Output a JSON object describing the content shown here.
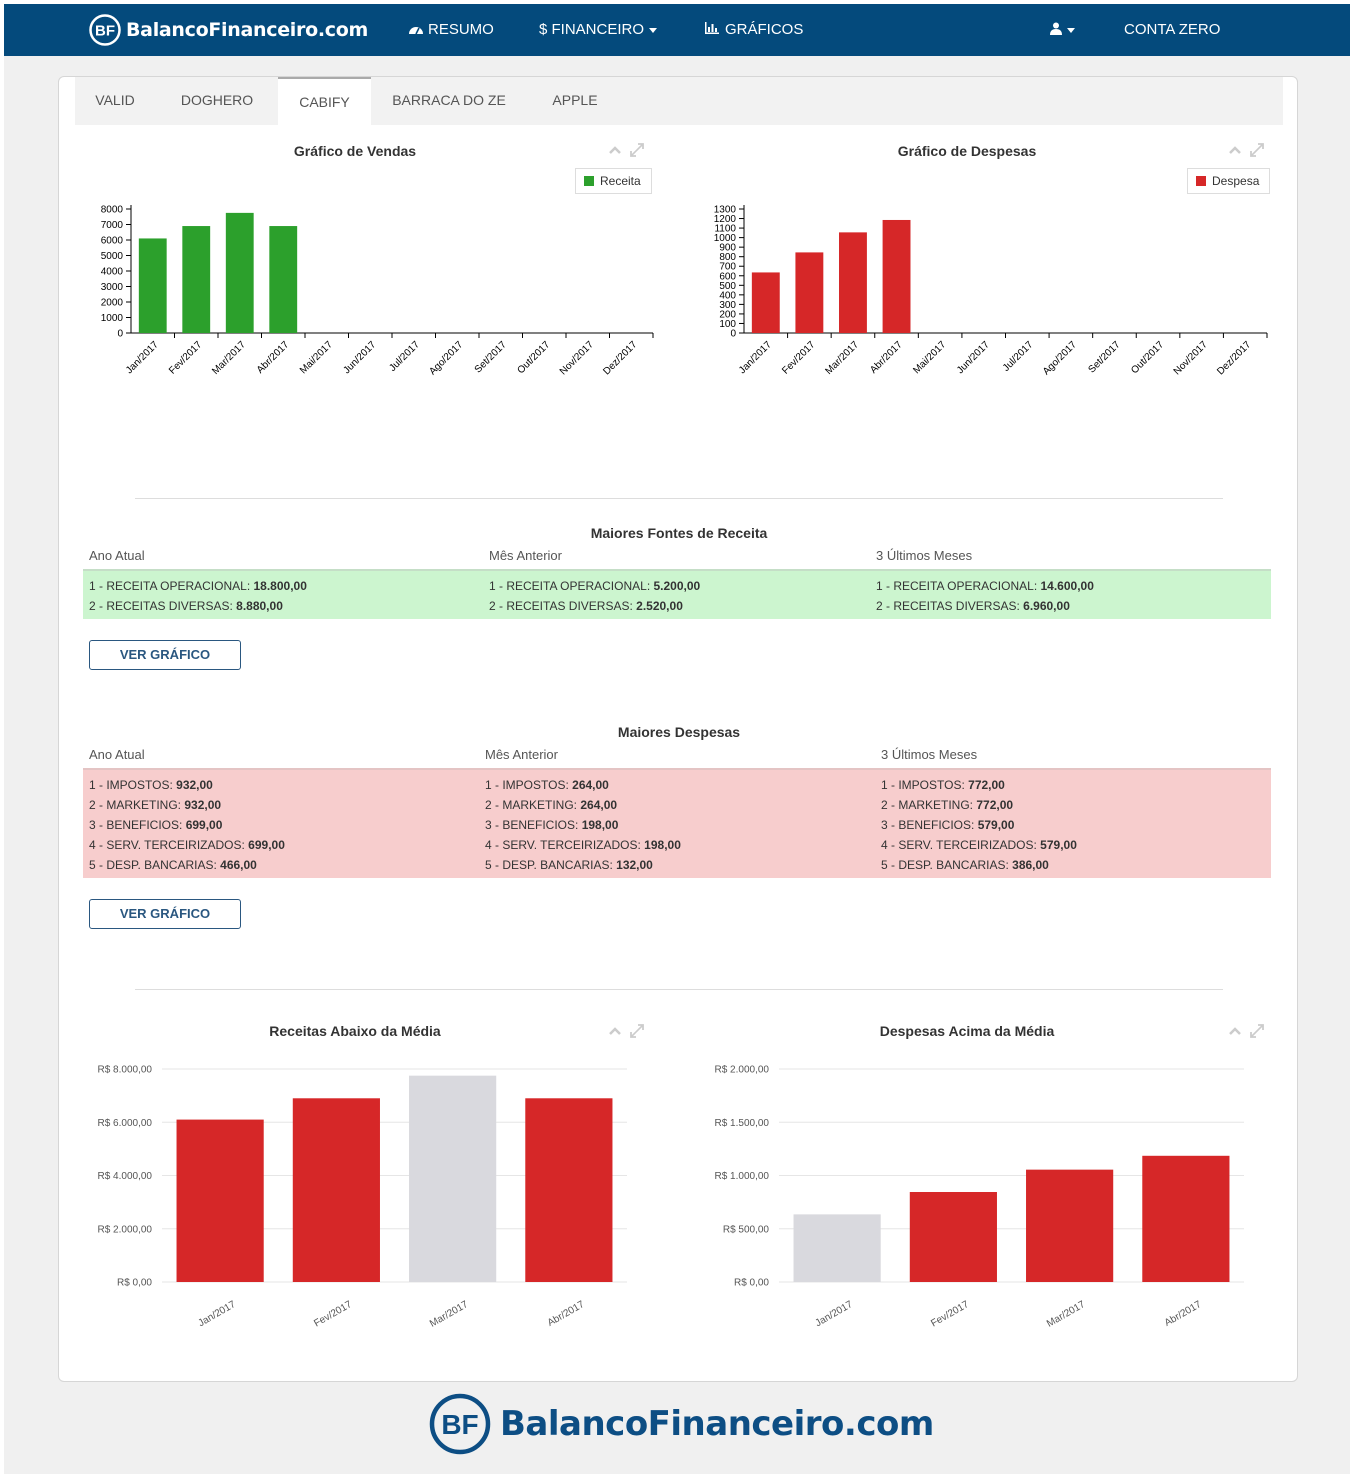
{
  "navbar": {
    "brand": "BalancoFinanceiro.com",
    "brand_initials": "BF",
    "items": [
      {
        "label": "RESUMO",
        "icon": "dashboard-icon"
      },
      {
        "label": "$ FINANCEIRO",
        "icon": "dollar-icon"
      },
      {
        "label": "GRÁFICOS",
        "icon": "bar-chart-icon"
      }
    ],
    "user_icon": "user-icon",
    "account": "CONTA ZERO"
  },
  "tabs": [
    {
      "label": "VALID",
      "active": false
    },
    {
      "label": "DOGHERO",
      "active": false
    },
    {
      "label": "CABIFY",
      "active": true
    },
    {
      "label": "BARRACA DO ZE",
      "active": false
    },
    {
      "label": "APPLE",
      "active": false
    }
  ],
  "colors": {
    "navbar": "#044a7c",
    "receita": "#2ca02c",
    "despesa": "#d62728",
    "neutral": "#d9d9de",
    "receita_bg": "#ccf5cf",
    "despesa_bg": "#f7cdcd"
  },
  "chart_data": [
    {
      "type": "bar",
      "title": "Gráfico de Vendas",
      "legend": "Receita",
      "legend_position": "top-right",
      "categories": [
        "Jan/2017",
        "Fev/2017",
        "Mar/2017",
        "Abr/2017",
        "Mai/2017",
        "Jun/2017",
        "Jul/2017",
        "Ago/2017",
        "Set/2017",
        "Out/2017",
        "Nov/2017",
        "Dez/2017"
      ],
      "values": [
        6100,
        6900,
        7750,
        6900,
        null,
        null,
        null,
        null,
        null,
        null,
        null,
        null
      ],
      "yticks": [
        "0",
        "1000",
        "2000",
        "3000",
        "4000",
        "5000",
        "6000",
        "7000",
        "8000"
      ],
      "ylim": [
        0,
        8000
      ]
    },
    {
      "type": "bar",
      "title": "Gráfico de Despesas",
      "legend": "Despesa",
      "legend_position": "top-right",
      "categories": [
        "Jan/2017",
        "Fev/2017",
        "Mar/2017",
        "Abr/2017",
        "Mai/2017",
        "Jun/2017",
        "Jul/2017",
        "Ago/2017",
        "Set/2017",
        "Out/2017",
        "Nov/2017",
        "Dez/2017"
      ],
      "values": [
        635,
        845,
        1055,
        1185,
        null,
        null,
        null,
        null,
        null,
        null,
        null,
        null
      ],
      "yticks": [
        "0",
        "100",
        "200",
        "300",
        "400",
        "500",
        "600",
        "700",
        "800",
        "900",
        "1000",
        "1100",
        "1200",
        "1300"
      ],
      "ylim": [
        0,
        1300
      ]
    },
    {
      "type": "bar",
      "title": "Receitas Abaixo da Média",
      "categories": [
        "Jan/2017",
        "Fev/2017",
        "Mar/2017",
        "Abr/2017"
      ],
      "values": [
        6100,
        6900,
        7750,
        6900
      ],
      "highlight": [
        true,
        true,
        false,
        true
      ],
      "yticks": [
        "R$ 0,00",
        "R$ 2.000,00",
        "R$ 4.000,00",
        "R$ 6.000,00",
        "R$ 8.000,00"
      ],
      "ylim": [
        0,
        8000
      ],
      "grid": true
    },
    {
      "type": "bar",
      "title": "Despesas Acima da Média",
      "categories": [
        "Jan/2017",
        "Fev/2017",
        "Mar/2017",
        "Abr/2017"
      ],
      "values": [
        635,
        845,
        1055,
        1185
      ],
      "highlight": [
        false,
        true,
        true,
        true
      ],
      "yticks": [
        "R$ 0,00",
        "R$ 500,00",
        "R$ 1.000,00",
        "R$ 1.500,00",
        "R$ 2.000,00"
      ],
      "ylim": [
        0,
        2000
      ],
      "grid": true
    }
  ],
  "receita": {
    "title": "Maiores Fontes de Receita",
    "columns": [
      {
        "head": "Ano Atual",
        "items": [
          {
            "label": "1 - RECEITA OPERACIONAL: ",
            "value": "18.800,00"
          },
          {
            "label": "2 - RECEITAS DIVERSAS: ",
            "value": "8.880,00"
          }
        ]
      },
      {
        "head": "Mês Anterior",
        "items": [
          {
            "label": "1 - RECEITA OPERACIONAL: ",
            "value": "5.200,00"
          },
          {
            "label": "2 - RECEITAS DIVERSAS: ",
            "value": "2.520,00"
          }
        ]
      },
      {
        "head": "3 Últimos Meses",
        "items": [
          {
            "label": "1 - RECEITA OPERACIONAL: ",
            "value": "14.600,00"
          },
          {
            "label": "2 - RECEITAS DIVERSAS: ",
            "value": "6.960,00"
          }
        ]
      }
    ],
    "button": "VER GRÁFICO"
  },
  "despesa": {
    "title": "Maiores Despesas",
    "columns": [
      {
        "head": "Ano Atual",
        "items": [
          {
            "label": "1 - IMPOSTOS: ",
            "value": "932,00"
          },
          {
            "label": "2 - MARKETING: ",
            "value": "932,00"
          },
          {
            "label": "3 - BENEFICIOS: ",
            "value": "699,00"
          },
          {
            "label": "4 - SERV. TERCEIRIZADOS: ",
            "value": "699,00"
          },
          {
            "label": "5 - DESP. BANCARIAS: ",
            "value": "466,00"
          }
        ]
      },
      {
        "head": "Mês Anterior",
        "items": [
          {
            "label": "1 - IMPOSTOS: ",
            "value": "264,00"
          },
          {
            "label": "2 - MARKETING: ",
            "value": "264,00"
          },
          {
            "label": "3 - BENEFICIOS: ",
            "value": "198,00"
          },
          {
            "label": "4 - SERV. TERCEIRIZADOS: ",
            "value": "198,00"
          },
          {
            "label": "5 - DESP. BANCARIAS: ",
            "value": "132,00"
          }
        ]
      },
      {
        "head": "3 Últimos Meses",
        "items": [
          {
            "label": "1 - IMPOSTOS: ",
            "value": "772,00"
          },
          {
            "label": "2 - MARKETING: ",
            "value": "772,00"
          },
          {
            "label": "3 - BENEFICIOS: ",
            "value": "579,00"
          },
          {
            "label": "4 - SERV. TERCEIRIZADOS: ",
            "value": "579,00"
          },
          {
            "label": "5 - DESP. BANCARIAS: ",
            "value": "386,00"
          }
        ]
      }
    ],
    "button": "VER GRÁFICO"
  },
  "footer": {
    "brand": "BalancoFinanceiro.com",
    "brand_initials": "BF"
  }
}
